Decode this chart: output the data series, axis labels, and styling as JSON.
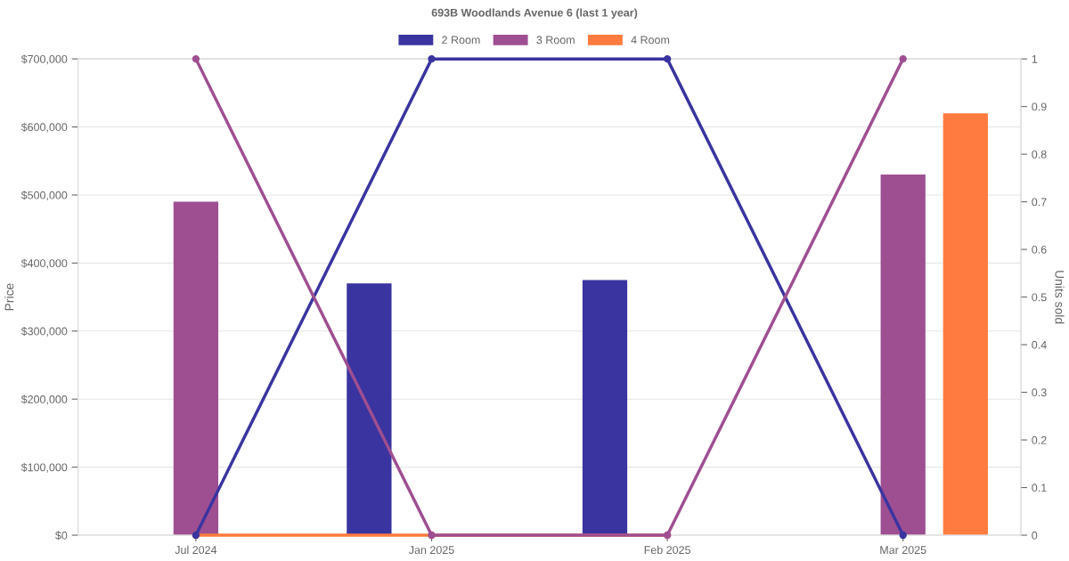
{
  "chart_data": {
    "type": "bar",
    "title": "693B Woodlands Avenue 6 (last 1 year)",
    "ylabel": "Price",
    "y2label": "Units sold",
    "categories": [
      "Jul 2024",
      "Jan 2025",
      "Feb 2025",
      "Mar 2025"
    ],
    "series": [
      {
        "name": "2 Room",
        "color": "#3a34a0",
        "values": [
          null,
          370000,
          375000,
          null
        ]
      },
      {
        "name": "3 Room",
        "color": "#9e4f91",
        "values": [
          490000,
          null,
          null,
          530000
        ]
      },
      {
        "name": "4 Room",
        "color": "#ff7b3f",
        "values": [
          null,
          null,
          null,
          620000
        ]
      },
      {
        "type": "line",
        "axis": "y2",
        "color": "#ff7b3f",
        "values": [
          0,
          0,
          0,
          null
        ]
      },
      {
        "type": "line",
        "axis": "y2",
        "color": "#3a34a0",
        "values": [
          0,
          1,
          1,
          0
        ]
      },
      {
        "type": "line",
        "axis": "y2",
        "color": "#9e4f91",
        "values": [
          1,
          0,
          0,
          1
        ]
      }
    ],
    "ylim": [
      0,
      700000
    ],
    "yticks": [
      {
        "value": 0,
        "label": "$0"
      },
      {
        "value": 100000,
        "label": "$100,000"
      },
      {
        "value": 200000,
        "label": "$200,000"
      },
      {
        "value": 300000,
        "label": "$300,000"
      },
      {
        "value": 400000,
        "label": "$400,000"
      },
      {
        "value": 500000,
        "label": "$500,000"
      },
      {
        "value": 600000,
        "label": "$600,000"
      },
      {
        "value": 700000,
        "label": "$700,000"
      }
    ],
    "y2lim": [
      0,
      1
    ],
    "y2ticks": [
      0,
      0.1,
      0.2,
      0.3,
      0.4,
      0.5,
      0.6,
      0.7,
      0.8,
      0.9,
      1
    ],
    "grid": "y",
    "legend": "top",
    "marker": "circle",
    "line_style": "solid"
  }
}
